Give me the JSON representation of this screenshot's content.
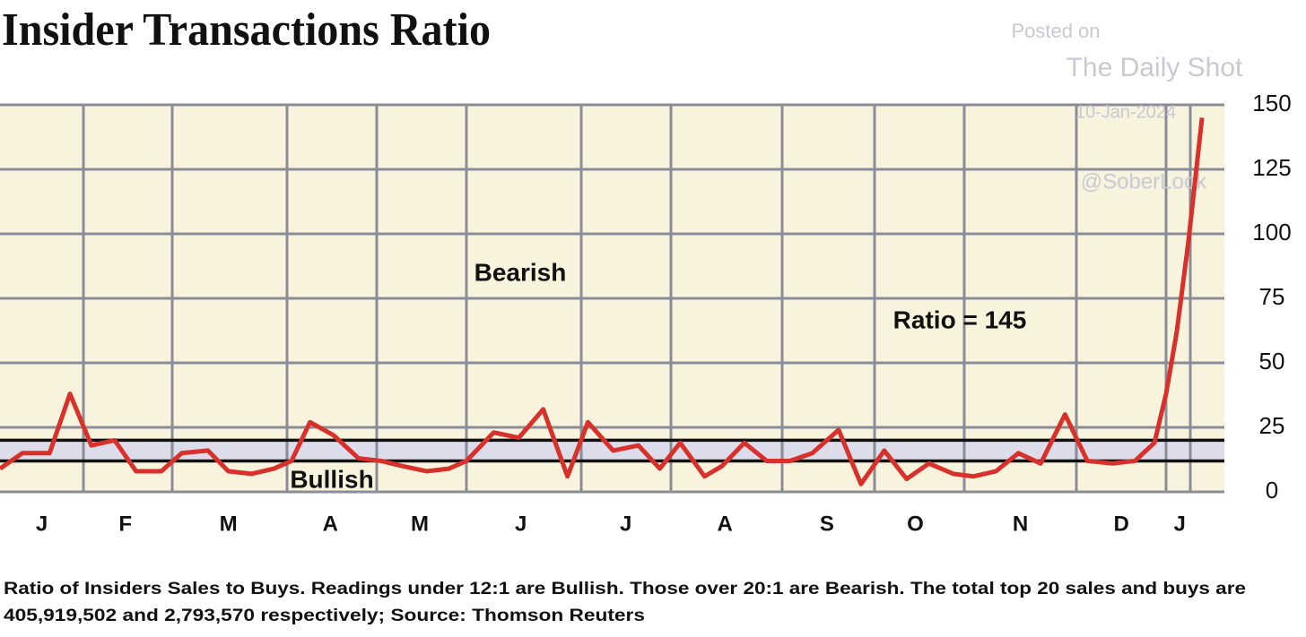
{
  "chart_data": {
    "type": "line",
    "title": "Insider Transactions Ratio",
    "watermark": [
      "Posted on",
      "The Daily Shot",
      "10-Jan-2024",
      "@SoberLook"
    ],
    "zone_labels": {
      "bearish": "Bearish",
      "bullish": "Bullish"
    },
    "annotation": "Ratio = 145",
    "note_lines": [
      "Ratio of Insiders Sales to Buys. Readings under 12:1 are Bullish. Those over 20:1 are Bearish. The total top 20 sales and buys are",
      "405,919,502 and 2,793,570 respectively; Source: Thomson Reuters"
    ],
    "bullish_threshold": 12,
    "bearish_threshold": 20,
    "xlim": [
      0,
      12.6
    ],
    "xticks": [
      {
        "value": 0.43,
        "label": "J"
      },
      {
        "value": 1.29,
        "label": "F"
      },
      {
        "value": 2.35,
        "label": "M"
      },
      {
        "value": 3.4,
        "label": "A"
      },
      {
        "value": 4.32,
        "label": "M"
      },
      {
        "value": 5.36,
        "label": "J"
      },
      {
        "value": 6.44,
        "label": "J"
      },
      {
        "value": 7.46,
        "label": "A"
      },
      {
        "value": 8.51,
        "label": "S"
      },
      {
        "value": 9.42,
        "label": "O"
      },
      {
        "value": 10.5,
        "label": "N"
      },
      {
        "value": 11.54,
        "label": "D"
      },
      {
        "value": 12.14,
        "label": "J"
      }
    ],
    "ylim": [
      0,
      150
    ],
    "yticks": [
      0,
      25,
      50,
      75,
      100,
      125,
      150
    ],
    "grid": true,
    "series": [
      {
        "name": "Ratio",
        "color": "#d8302a",
        "x": [
          0,
          0.23,
          0.51,
          0.72,
          0.94,
          1.18,
          1.4,
          1.66,
          1.87,
          2.14,
          2.35,
          2.59,
          2.82,
          3.0,
          3.19,
          3.43,
          3.69,
          3.92,
          4.14,
          4.39,
          4.62,
          4.8,
          5.08,
          5.34,
          5.59,
          5.84,
          6.05,
          6.31,
          6.57,
          6.79,
          7.0,
          7.25,
          7.43,
          7.66,
          7.89,
          8.13,
          8.36,
          8.63,
          8.86,
          9.1,
          9.33,
          9.56,
          9.81,
          10.02,
          10.25,
          10.48,
          10.71,
          10.96,
          11.19,
          11.45,
          11.68,
          11.88,
          12.0,
          12.11,
          12.23,
          12.37
        ],
        "values": [
          9,
          15,
          15,
          38,
          18,
          20,
          8,
          8,
          15,
          16,
          8,
          7,
          9,
          12,
          27,
          22,
          13,
          12,
          10,
          8,
          9,
          12,
          23,
          21,
          32,
          6,
          27,
          16,
          18,
          9,
          19,
          6,
          10,
          19,
          12,
          12,
          15,
          24,
          3,
          16,
          5,
          11,
          7,
          6,
          8,
          15,
          11,
          30,
          12,
          11,
          12,
          19,
          38,
          62,
          97,
          145
        ]
      }
    ]
  }
}
